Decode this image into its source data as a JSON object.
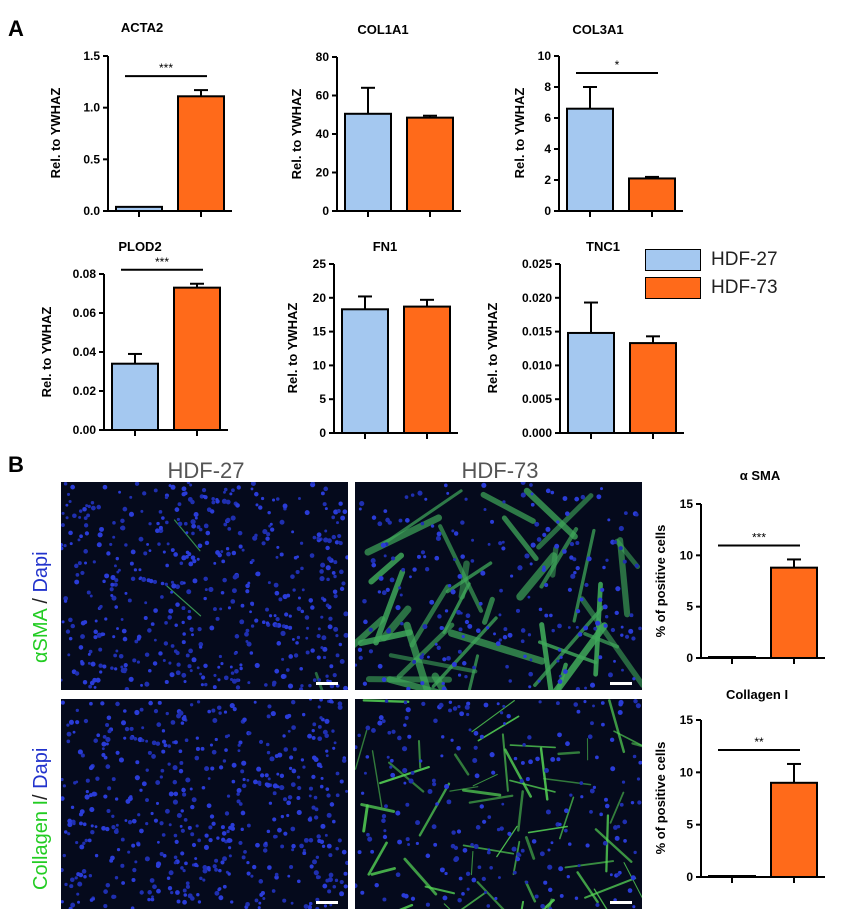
{
  "panel_letters": {
    "a": "A",
    "b": "B"
  },
  "colors": {
    "hdf27": "#a4c8f0",
    "hdf73": "#ff6a1a",
    "green": "#22cc22",
    "blue": "#2233cc"
  },
  "legend": [
    {
      "label": "HDF-27",
      "color": "#a4c8f0"
    },
    {
      "label": "HDF-73",
      "color": "#ff6a1a"
    }
  ],
  "microscopy": {
    "col1": "HDF-27",
    "col2": "HDF-73",
    "row1": {
      "marker": "αSMA",
      "sep": " / ",
      "stain": "Dapi"
    },
    "row2": {
      "marker": "Collagen I",
      "sep": "/ ",
      "stain": "Dapi"
    }
  },
  "chart_data": [
    {
      "type": "bar",
      "title": "ACTA2",
      "ylabel": "Rel. to YWHAZ",
      "categories": [
        "HDF-27",
        "HDF-73"
      ],
      "values": [
        0.04,
        1.11
      ],
      "errors": [
        0.0,
        0.06
      ],
      "ylim": [
        0,
        1.5
      ],
      "yticks": [
        "0.0",
        "0.5",
        "1.0",
        "1.5"
      ],
      "significance": "***"
    },
    {
      "type": "bar",
      "title": "COL1A1",
      "ylabel": "Rel. to YWHAZ",
      "categories": [
        "HDF-27",
        "HDF-73"
      ],
      "values": [
        50.5,
        48.5
      ],
      "errors": [
        13.5,
        1.0
      ],
      "ylim": [
        0,
        80
      ],
      "yticks": [
        "0",
        "20",
        "40",
        "60",
        "80"
      ],
      "significance": ""
    },
    {
      "type": "bar",
      "title": "COL3A1",
      "ylabel": "Rel. to YWHAZ",
      "categories": [
        "HDF-27",
        "HDF-73"
      ],
      "values": [
        6.6,
        2.1
      ],
      "errors": [
        1.4,
        0.1
      ],
      "ylim": [
        0,
        10
      ],
      "yticks": [
        "0",
        "2",
        "4",
        "6",
        "8",
        "10"
      ],
      "significance": "*"
    },
    {
      "type": "bar",
      "title": "PLOD2",
      "ylabel": "Rel. to YWHAZ",
      "categories": [
        "HDF-27",
        "HDF-73"
      ],
      "values": [
        0.034,
        0.073
      ],
      "errors": [
        0.005,
        0.002
      ],
      "ylim": [
        0,
        0.08
      ],
      "yticks": [
        "0.00",
        "0.02",
        "0.04",
        "0.06",
        "0.08"
      ],
      "significance": "***"
    },
    {
      "type": "bar",
      "title": "FN1",
      "ylabel": "Rel. to YWHAZ",
      "categories": [
        "HDF-27",
        "HDF-73"
      ],
      "values": [
        18.3,
        18.7
      ],
      "errors": [
        1.9,
        1.0
      ],
      "ylim": [
        0,
        25
      ],
      "yticks": [
        "0",
        "5",
        "10",
        "15",
        "20",
        "25"
      ],
      "significance": ""
    },
    {
      "type": "bar",
      "title": "TNC1",
      "ylabel": "Rel. to YWHAZ",
      "categories": [
        "HDF-27",
        "HDF-73"
      ],
      "values": [
        0.0148,
        0.0133
      ],
      "errors": [
        0.0045,
        0.001
      ],
      "ylim": [
        0,
        0.025
      ],
      "yticks": [
        "0.000",
        "0.005",
        "0.010",
        "0.015",
        "0.020",
        "0.025"
      ],
      "significance": ""
    },
    {
      "type": "bar",
      "title": "α SMA",
      "ylabel": "% of positive cells",
      "categories": [
        "HDF-27",
        "HDF-73"
      ],
      "values": [
        0.0,
        8.8
      ],
      "errors": [
        0.0,
        0.8
      ],
      "ylim": [
        0,
        15
      ],
      "yticks": [
        "0",
        "5",
        "10",
        "15"
      ],
      "significance": "***"
    },
    {
      "type": "bar",
      "title": "Collagen I",
      "ylabel": "% of positive cells",
      "categories": [
        "HDF-27",
        "HDF-73"
      ],
      "values": [
        0.0,
        9.0
      ],
      "errors": [
        0.0,
        1.8
      ],
      "ylim": [
        0,
        15
      ],
      "yticks": [
        "0",
        "5",
        "10",
        "15"
      ],
      "significance": "**"
    }
  ]
}
